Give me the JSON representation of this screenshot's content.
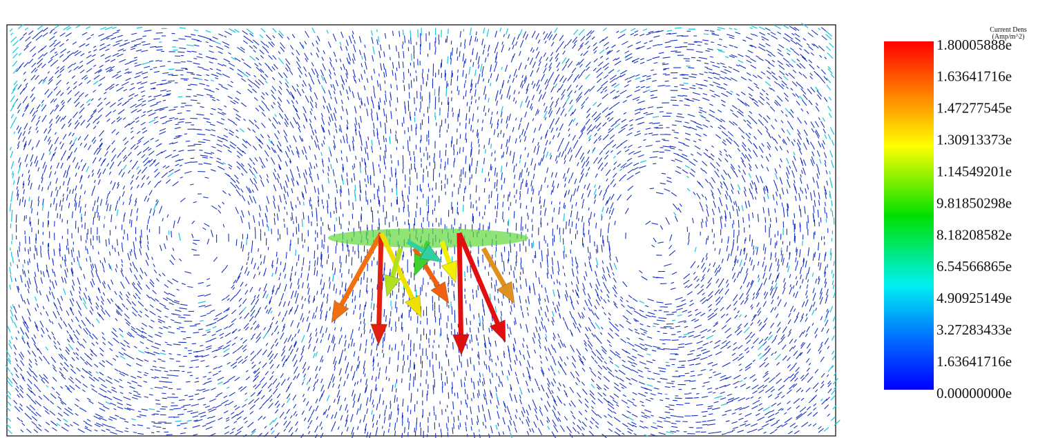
{
  "legend": {
    "title": "Current Dens",
    "unit": "(Amp/m^2)",
    "labels": [
      "1.80005888e",
      "1.63641716e",
      "1.47277545e",
      "1.30913373e",
      "1.14549201e",
      "9.81850298e",
      "8.18208582e",
      "6.54566865e",
      "4.90925149e",
      "3.27283433e",
      "1.63641716e",
      "0.00000000e"
    ]
  }
}
